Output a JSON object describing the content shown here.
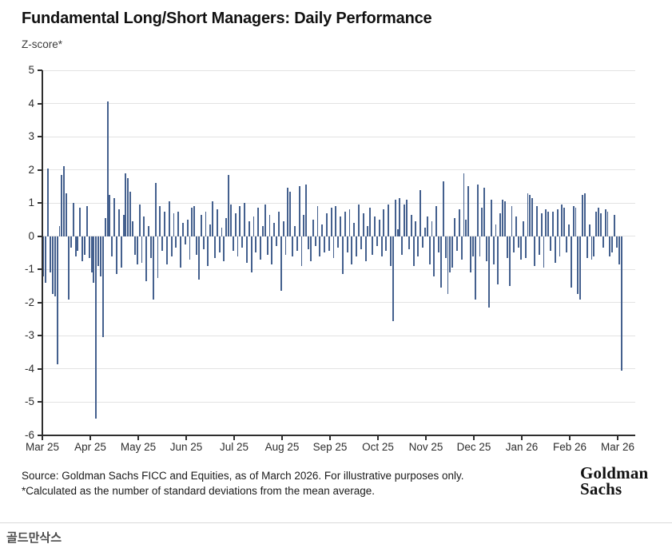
{
  "header": {
    "title": "Fundamental Long/Short Managers: Daily Performance",
    "subtitle": "Z-score*"
  },
  "chart_data": {
    "type": "bar",
    "title": "Fundamental Long/Short Managers: Daily Performance",
    "ylabel": "Z-score*",
    "xlabel": "",
    "ylim": [
      -6,
      5
    ],
    "yticks": [
      5,
      4,
      3,
      2,
      1,
      0,
      -1,
      -2,
      -3,
      -4,
      -5,
      -6
    ],
    "x_tick_labels": [
      "Mar 25",
      "Apr 25",
      "May 25",
      "Jun 25",
      "Jul 25",
      "Aug 25",
      "Sep 25",
      "Oct 25",
      "Nov 25",
      "Dec 25",
      "Jan 26",
      "Feb 26",
      "Mar 26"
    ],
    "grid": true,
    "legend": false,
    "bar_color": "#44608e",
    "values": [
      -1.2,
      -1.4,
      2.05,
      -1.1,
      -1.75,
      -1.8,
      -3.85,
      0.3,
      1.85,
      2.1,
      1.3,
      -1.9,
      -0.35,
      1.0,
      -0.6,
      -0.45,
      0.85,
      -0.75,
      -0.55,
      0.9,
      -0.65,
      -1.1,
      -1.4,
      -5.5,
      -0.9,
      -1.2,
      -3.05,
      0.55,
      4.05,
      1.25,
      -0.6,
      1.15,
      -1.15,
      0.8,
      -0.95,
      0.65,
      1.9,
      1.75,
      1.35,
      0.45,
      -0.55,
      -0.85,
      0.95,
      -0.8,
      0.6,
      -1.35,
      0.3,
      -0.65,
      -1.9,
      1.6,
      -1.25,
      0.9,
      -0.45,
      0.75,
      -0.85,
      1.05,
      -0.6,
      0.7,
      -0.35,
      0.75,
      -0.95,
      0.4,
      -0.25,
      0.5,
      -0.7,
      0.85,
      0.9,
      -0.55,
      -1.3,
      0.65,
      -0.4,
      0.75,
      -0.9,
      0.35,
      1.05,
      -0.65,
      0.8,
      -0.5,
      0.25,
      -0.75,
      0.55,
      1.85,
      0.95,
      -0.45,
      0.7,
      -0.6,
      0.9,
      -0.35,
      1.0,
      -0.8,
      0.45,
      -1.1,
      0.6,
      -0.5,
      0.85,
      -0.7,
      0.3,
      0.95,
      -0.55,
      0.65,
      -0.85,
      0.4,
      -0.3,
      0.75,
      -1.65,
      0.45,
      -0.55,
      1.45,
      1.35,
      -0.6,
      0.3,
      -0.45,
      1.5,
      -0.9,
      0.65,
      1.55,
      -0.4,
      -0.75,
      0.5,
      -0.3,
      0.9,
      -0.6,
      0.35,
      -0.5,
      0.7,
      -0.45,
      0.85,
      -0.65,
      0.9,
      -0.35,
      0.6,
      -1.15,
      0.75,
      -0.5,
      0.8,
      -0.85,
      0.4,
      -0.6,
      0.95,
      -0.4,
      0.7,
      -0.75,
      0.3,
      0.85,
      -0.55,
      0.6,
      -0.3,
      0.5,
      -0.6,
      0.8,
      -0.45,
      0.95,
      -0.9,
      -2.55,
      1.1,
      0.2,
      1.15,
      -0.55,
      0.95,
      1.1,
      -0.4,
      0.65,
      -0.9,
      0.45,
      -0.6,
      1.4,
      -0.35,
      0.25,
      0.6,
      -0.85,
      0.45,
      -1.2,
      0.9,
      -0.5,
      -1.55,
      1.65,
      -0.65,
      -1.75,
      -1.1,
      -0.95,
      0.55,
      -0.45,
      0.8,
      -0.7,
      1.9,
      0.5,
      1.5,
      -1.1,
      -0.6,
      -1.9,
      1.55,
      -0.6,
      0.85,
      1.45,
      -0.75,
      -2.15,
      1.1,
      -0.85,
      0.35,
      -1.45,
      0.7,
      1.1,
      1.05,
      -0.65,
      -1.5,
      0.9,
      -0.5,
      0.6,
      -0.35,
      -0.7,
      0.45,
      -0.65,
      1.3,
      1.25,
      1.15,
      -0.9,
      0.9,
      -0.55,
      0.7,
      -0.95,
      0.8,
      0.75,
      -0.45,
      0.75,
      -0.8,
      0.8,
      -0.6,
      0.95,
      0.85,
      -0.5,
      0.35,
      -1.55,
      0.9,
      0.85,
      -1.75,
      -1.9,
      1.25,
      1.3,
      -0.65,
      0.35,
      -0.7,
      -0.6,
      0.75,
      0.85,
      0.7,
      -0.35,
      0.8,
      0.75,
      -0.6,
      -0.5,
      0.65,
      -0.35,
      -0.85,
      -4.05
    ]
  },
  "footer": {
    "source_line1": "Source: Goldman Sachs FICC and Equities, as of March 2026. For illustrative purposes only.",
    "source_line2": "*Calculated as the number of standard deviations from the mean average.",
    "logo_line1": "Goldman",
    "logo_line2": "Sachs"
  },
  "caption": {
    "label": "골드만삭스"
  }
}
